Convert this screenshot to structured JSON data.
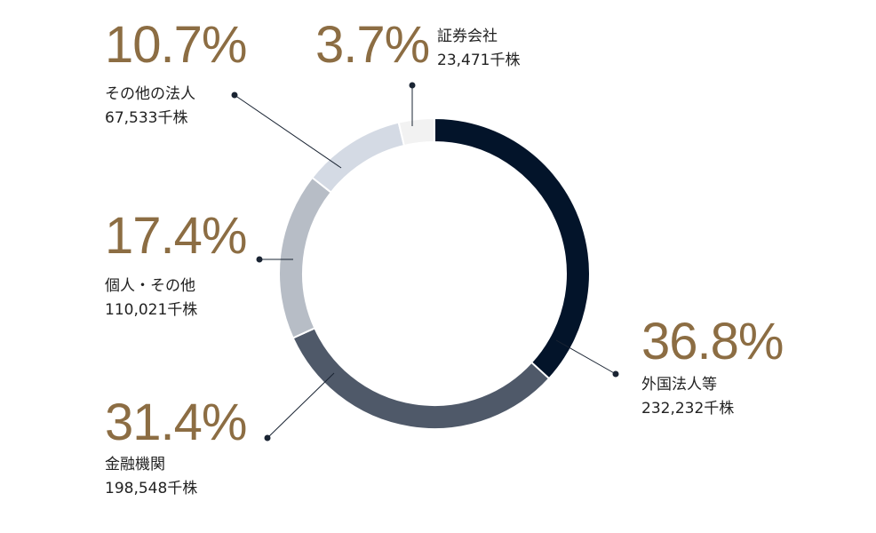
{
  "chart_data": {
    "type": "pie",
    "style": "donut",
    "unit": "千株",
    "slices": [
      {
        "name": "外国法人等",
        "percent": 36.8,
        "percent_label": "36.8%",
        "shares_label": "232,232千株",
        "color": "#03142a"
      },
      {
        "name": "金融機関",
        "percent": 31.4,
        "percent_label": "31.4%",
        "shares_label": "198,548千株",
        "color": "#4f5969"
      },
      {
        "name": "個人・その他",
        "percent": 17.4,
        "percent_label": "17.4%",
        "shares_label": "110,021千株",
        "color": "#b7bdc6"
      },
      {
        "name": "その他の法人",
        "percent": 10.7,
        "percent_label": "10.7%",
        "shares_label": "67,533千株",
        "color": "#d4dae4"
      },
      {
        "name": "証券会社",
        "percent": 3.7,
        "percent_label": "3.7%",
        "shares_label": "23,471千株",
        "color": "#f2f2f2"
      }
    ],
    "leader_color": "#1a2433"
  }
}
